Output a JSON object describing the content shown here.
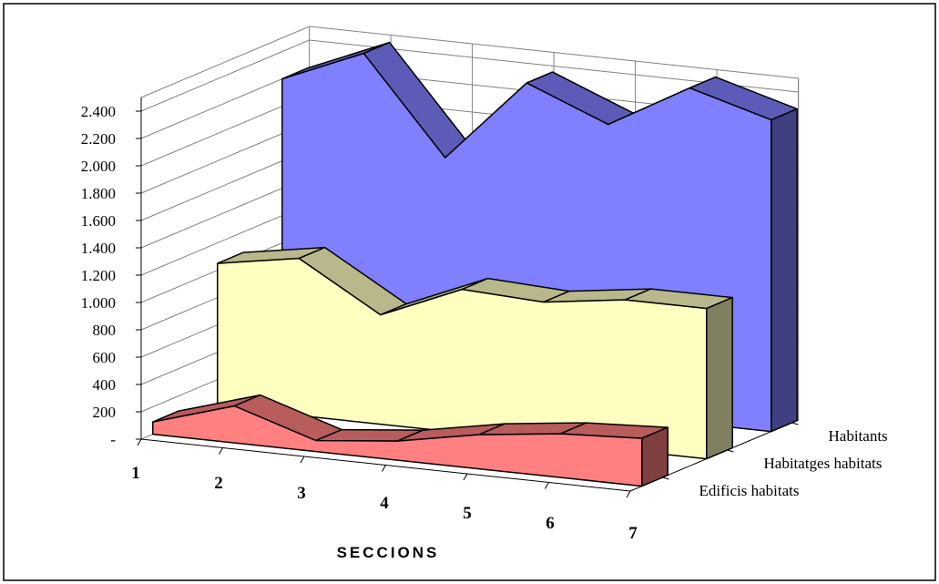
{
  "chart_data": {
    "type": "area",
    "subtype": "3d-area",
    "categories": [
      "1",
      "2",
      "3",
      "4",
      "5",
      "6",
      "7"
    ],
    "series": [
      {
        "name": "Edificis habitats",
        "values": [
          90,
          270,
          80,
          140,
          250,
          320,
          350
        ],
        "color": "#ff8080"
      },
      {
        "name": "Habitatges habitats",
        "values": [
          1050,
          1150,
          800,
          1050,
          1020,
          1100,
          1100
        ],
        "color": "#ffffc0"
      },
      {
        "name": "Habitants",
        "values": [
          2200,
          2450,
          1750,
          2360,
          2120,
          2450,
          2280
        ],
        "color": "#8080ff"
      }
    ],
    "y_tick_labels": [
      "-",
      "200",
      "400",
      "600",
      "800",
      "1.000",
      "1.200",
      "1.400",
      "1.600",
      "1.800",
      "2.000",
      "2.200",
      "2.400"
    ],
    "ylim": [
      0,
      2400
    ],
    "xlabel": "SECCIONS",
    "ylabel": "",
    "title": "",
    "grid": true,
    "legend": "series labels on depth axis (right)"
  }
}
